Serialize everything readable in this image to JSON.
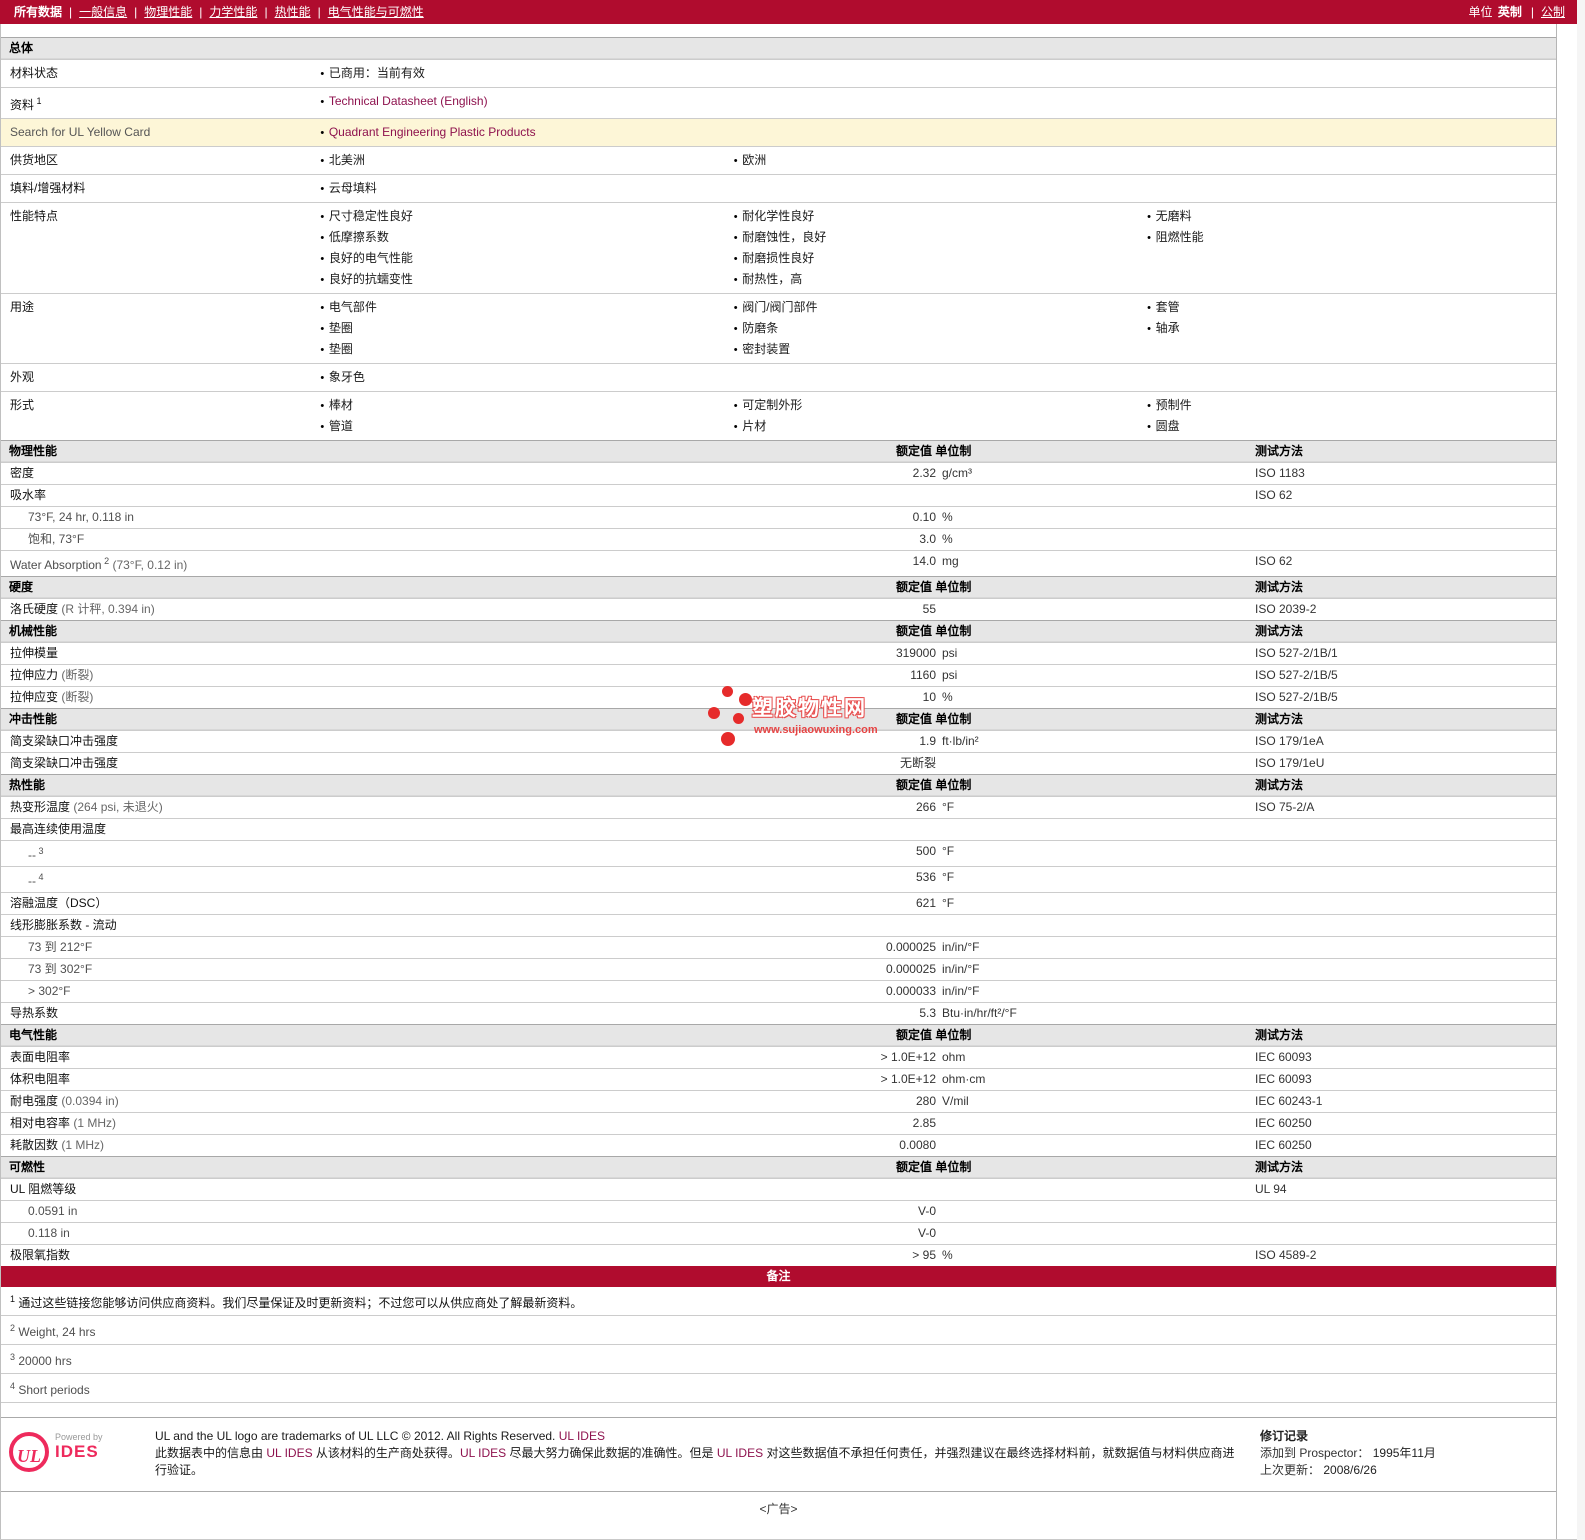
{
  "nav": {
    "tabs": [
      {
        "label": "所有数据",
        "current": true
      },
      {
        "label": "一般信息",
        "current": false
      },
      {
        "label": "物理性能",
        "current": false
      },
      {
        "label": "力学性能",
        "current": false
      },
      {
        "label": "热性能",
        "current": false
      },
      {
        "label": "电气性能与可燃性",
        "current": false
      }
    ],
    "units_label": "单位",
    "unit_current": "英制",
    "unit_alt": "公制"
  },
  "general": {
    "title": "总体",
    "rows": [
      {
        "label": "材料状态",
        "cols": [
          [
            {
              "t": "已商用：当前有效"
            }
          ],
          [],
          []
        ]
      },
      {
        "label": "资料",
        "sup": "1",
        "cols": [
          [
            {
              "t": "Technical Datasheet (English)",
              "link": true
            }
          ],
          [],
          []
        ]
      },
      {
        "label": "Search for UL Yellow Card",
        "highlight": true,
        "label_gray": true,
        "cols": [
          [
            {
              "t": "Quadrant Engineering Plastic Products",
              "link": true
            }
          ],
          [],
          []
        ]
      },
      {
        "label": "供货地区",
        "cols": [
          [
            {
              "t": "北美洲"
            }
          ],
          [
            {
              "t": "欧洲"
            }
          ],
          []
        ]
      },
      {
        "label": "填料/增强材料",
        "cols": [
          [
            {
              "t": "云母填料"
            }
          ],
          [],
          []
        ]
      },
      {
        "label": "性能特点",
        "cols": [
          [
            {
              "t": "尺寸稳定性良好"
            },
            {
              "t": "低摩擦系数"
            },
            {
              "t": "良好的电气性能"
            },
            {
              "t": "良好的抗蠕变性"
            }
          ],
          [
            {
              "t": "耐化学性良好"
            },
            {
              "t": "耐磨蚀性，良好"
            },
            {
              "t": "耐磨损性良好"
            },
            {
              "t": "耐热性，高"
            }
          ],
          [
            {
              "t": "无磨料"
            },
            {
              "t": "阻燃性能"
            }
          ]
        ]
      },
      {
        "label": "用途",
        "cols": [
          [
            {
              "t": "电气部件"
            },
            {
              "t": "垫圈"
            },
            {
              "t": "垫圈"
            }
          ],
          [
            {
              "t": "阀门/阀门部件"
            },
            {
              "t": "防磨条"
            },
            {
              "t": "密封装置"
            }
          ],
          [
            {
              "t": "套管"
            },
            {
              "t": "轴承"
            }
          ]
        ]
      },
      {
        "label": "外观",
        "cols": [
          [
            {
              "t": "象牙色"
            }
          ],
          [],
          []
        ]
      },
      {
        "label": "形式",
        "cols": [
          [
            {
              "t": "棒材"
            },
            {
              "t": "管道"
            }
          ],
          [
            {
              "t": "可定制外形"
            },
            {
              "t": "片材"
            }
          ],
          [
            {
              "t": "预制件"
            },
            {
              "t": "圆盘"
            }
          ]
        ]
      }
    ]
  },
  "col_headers": {
    "value": "额定值 单位制",
    "method": "测试方法"
  },
  "sections": [
    {
      "title": "物理性能",
      "rows": [
        {
          "label": "密度",
          "value": "2.32",
          "unit": "g/cm³",
          "method": "ISO 1183"
        },
        {
          "label": "吸水率",
          "method": "ISO 62"
        },
        {
          "label": "73°F, 24 hr, 0.118 in",
          "indent": true,
          "gray": true,
          "value": "0.10",
          "unit": "%"
        },
        {
          "label": "饱和, 73°F",
          "indent": true,
          "gray": true,
          "value": "3.0",
          "unit": "%"
        },
        {
          "label": "Water Absorption",
          "sup": "2",
          "note": "(73°F, 0.12 in)",
          "gray": true,
          "value": "14.0",
          "unit": "mg",
          "method": "ISO 62"
        }
      ]
    },
    {
      "title": "硬度",
      "rows": [
        {
          "label": "洛氏硬度",
          "note": "(R 计秤, 0.394 in)",
          "value": "55",
          "method": "ISO 2039-2"
        }
      ]
    },
    {
      "title": "机械性能",
      "rows": [
        {
          "label": "拉伸模量",
          "value": "319000",
          "unit": "psi",
          "method": "ISO 527-2/1B/1"
        },
        {
          "label": "拉伸应力",
          "note": "(断裂)",
          "value": "1160",
          "unit": "psi",
          "method": "ISO 527-2/1B/5"
        },
        {
          "label": "拉伸应变",
          "note": "(断裂)",
          "value": "10",
          "unit": "%",
          "method": "ISO 527-2/1B/5"
        }
      ]
    },
    {
      "title": "冲击性能",
      "rows": [
        {
          "label": "简支梁缺口冲击强度",
          "value": "1.9",
          "unit": "ft·lb/in²",
          "method": "ISO 179/1eA"
        },
        {
          "label": "简支梁缺口冲击强度",
          "value": "无断裂",
          "method": "ISO 179/1eU"
        }
      ]
    },
    {
      "title": "热性能",
      "rows": [
        {
          "label": "热变形温度",
          "note": "(264 psi, 未退火)",
          "value": "266",
          "unit": "°F",
          "method": "ISO 75-2/A"
        },
        {
          "label": "最高连续使用温度"
        },
        {
          "label": "--",
          "sup": "3",
          "indent": true,
          "gray": true,
          "value": "500",
          "unit": "°F"
        },
        {
          "label": "--",
          "sup": "4",
          "indent": true,
          "gray": true,
          "value": "536",
          "unit": "°F"
        },
        {
          "label": "溶融温度（DSC）",
          "value": "621",
          "unit": "°F"
        },
        {
          "label": "线形膨胀系数  - 流动"
        },
        {
          "label": "73 到  212°F",
          "indent": true,
          "gray": true,
          "value": "0.000025",
          "unit": "in/in/°F"
        },
        {
          "label": "73 到  302°F",
          "indent": true,
          "gray": true,
          "value": "0.000025",
          "unit": "in/in/°F"
        },
        {
          "label": "> 302°F",
          "indent": true,
          "gray": true,
          "value": "0.000033",
          "unit": "in/in/°F"
        },
        {
          "label": "导热系数",
          "value": "5.3",
          "unit": "Btu·in/hr/ft²/°F"
        }
      ]
    },
    {
      "title": "电气性能",
      "rows": [
        {
          "label": "表面电阻率",
          "value": "> 1.0E+12",
          "unit": "ohm",
          "method": "IEC 60093"
        },
        {
          "label": "体积电阻率",
          "value": "> 1.0E+12",
          "unit": "ohm·cm",
          "method": "IEC 60093"
        },
        {
          "label": "耐电强度",
          "note": "(0.0394 in)",
          "value": "280",
          "unit": "V/mil",
          "method": "IEC 60243-1"
        },
        {
          "label": "相对电容率",
          "note": "(1 MHz)",
          "value": "2.85",
          "method": "IEC 60250"
        },
        {
          "label": "耗散因数",
          "note": "(1 MHz)",
          "value": "0.0080",
          "method": "IEC 60250"
        }
      ]
    },
    {
      "title": "可燃性",
      "rows": [
        {
          "label": "UL 阻燃等级",
          "method": "UL 94"
        },
        {
          "label": "0.0591 in",
          "indent": true,
          "gray": true,
          "value": "V-0"
        },
        {
          "label": "0.118 in",
          "indent": true,
          "gray": true,
          "value": "V-0"
        },
        {
          "label": "极限氧指数",
          "value": "> 95",
          "unit": "%",
          "method": "ISO 4589-2"
        }
      ]
    }
  ],
  "notes": {
    "title": "备注",
    "items": [
      {
        "sup": "1",
        "text": "通过这些链接您能够访问供应商资料。我们尽量保证及时更新资料；不过您可以从供应商处了解最新资料。",
        "gray": false
      },
      {
        "sup": "2",
        "text": "Weight, 24 hrs",
        "gray": true
      },
      {
        "sup": "3",
        "text": "20000 hrs",
        "gray": true
      },
      {
        "sup": "4",
        "text": "Short periods",
        "gray": true
      }
    ]
  },
  "watermark": {
    "text": "塑胶物性网",
    "url": "www.sujiaowuxing.com"
  },
  "footer": {
    "logo_text": "UL",
    "powered_by": "Powered by",
    "brand": "IDES",
    "line1": "UL and the UL logo are trademarks of UL LLC © 2012. All Rights Reserved. ",
    "line1_link": "UL IDES",
    "para_segments": [
      {
        "t": "此数据表中的信息由 "
      },
      {
        "t": "UL IDES",
        "link": true
      },
      {
        "t": " 从该材料的生产商处获得。"
      },
      {
        "t": "UL IDES",
        "link": true
      },
      {
        "t": " 尽最大努力确保此数据的准确性。但是 "
      },
      {
        "t": "UL IDES",
        "link": true
      },
      {
        "t": " 对这些数据值不承担任何责任，并强烈建议在最终选择材料前，就数据值与材料供应商进行验证。"
      }
    ],
    "revision_title": "修订记录",
    "added_label": "添加到  Prospector：",
    "added_value": "1995年11月",
    "updated_label": "上次更新：",
    "updated_value": "2008/6/26"
  },
  "ad": "<广告>"
}
